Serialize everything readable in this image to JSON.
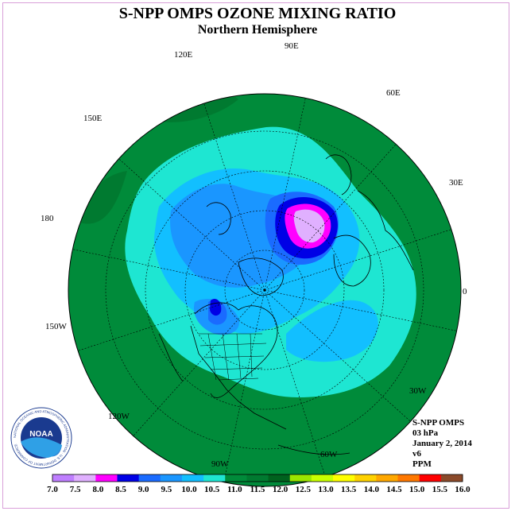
{
  "header": {
    "title": "S-NPP OMPS OZONE MIXING RATIO",
    "subtitle": "Northern Hemisphere"
  },
  "map": {
    "projection": "north-polar-stereographic",
    "longitude_labels": [
      "90E",
      "60E",
      "30E",
      "0",
      "30W",
      "60W",
      "90W",
      "120W",
      "150W",
      "180",
      "150E",
      "120E"
    ],
    "ocean_background_color": "#008b3a",
    "field_colors": {
      "outer": "#008b3a",
      "band_11_0": "#1ee6d2",
      "band_10_5": "#12bfff",
      "band_10_0": "#1a96ff",
      "band_9_5": "#1a6bff",
      "band_9_0": "#0000e6",
      "band_8_5": "#ff00ff",
      "band_8_0": "#e0b0ff"
    }
  },
  "info": {
    "product": "S-NPP OMPS",
    "level": "03 hPa",
    "date": "January 2, 2014",
    "version": "v6",
    "units": "PPM"
  },
  "logo": {
    "text": "NOAA",
    "ring_text": "NATIONAL OCEANIC AND ATMOSPHERIC ADMINISTRATION · U.S. DEPARTMENT OF COMMERCE"
  },
  "colorbar": {
    "labels": [
      "7.0",
      "7.5",
      "8.0",
      "8.5",
      "9.0",
      "9.5",
      "10.0",
      "10.5",
      "11.0",
      "11.5",
      "12.0",
      "12.5",
      "13.0",
      "13.5",
      "14.0",
      "14.5",
      "15.0",
      "15.5",
      "16.0"
    ],
    "colors": [
      "#bf7fff",
      "#e0b0ff",
      "#ff00ff",
      "#0000e6",
      "#1a6bff",
      "#1a96ff",
      "#12bfff",
      "#1ee6d2",
      "#008b3a",
      "#007a30",
      "#00621e",
      "#9be600",
      "#c8ff00",
      "#ffff00",
      "#ffd200",
      "#ffa800",
      "#ff7800",
      "#ff0000",
      "#8b4a2a"
    ]
  }
}
